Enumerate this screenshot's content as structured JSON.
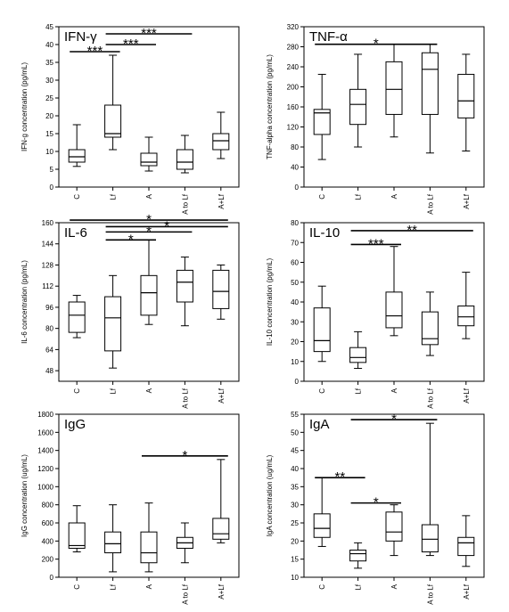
{
  "chart_data": [
    {
      "type": "box",
      "title": "IFN-γ",
      "ylabel": "IFN-g concentration (pg/mL)",
      "ylim": [
        0,
        45
      ],
      "yticks": [
        0,
        5,
        10,
        15,
        20,
        25,
        30,
        35,
        40,
        45
      ],
      "categories": [
        "C",
        "Lf",
        "A",
        "A to Lf",
        "A+Lf"
      ],
      "boxes": [
        {
          "min": 5.8,
          "q1": 7.0,
          "median": 8.5,
          "q3": 10.5,
          "max": 17.5
        },
        {
          "min": 10.5,
          "q1": 14.0,
          "median": 15.0,
          "q3": 23.0,
          "max": 37.0
        },
        {
          "min": 4.5,
          "q1": 6.0,
          "median": 7.0,
          "q3": 9.5,
          "max": 14.0
        },
        {
          "min": 4.0,
          "q1": 5.0,
          "median": 7.0,
          "q3": 10.5,
          "max": 14.5
        },
        {
          "min": 8.0,
          "q1": 10.5,
          "median": 13.0,
          "q3": 15.0,
          "max": 21.0
        }
      ],
      "significance": [
        {
          "from": 0,
          "to": 1,
          "y": 38.0,
          "label": "***"
        },
        {
          "from": 1,
          "to": 2,
          "y": 40.0,
          "label": "***"
        },
        {
          "from": 1,
          "to": 3,
          "y": 43.0,
          "label": "***"
        }
      ]
    },
    {
      "type": "box",
      "title": "TNF-α",
      "ylabel": "TNF-alpha concentration (pg/mL)",
      "ylim": [
        0,
        320
      ],
      "yticks": [
        0,
        40,
        80,
        120,
        160,
        200,
        240,
        280,
        320
      ],
      "categories": [
        "C",
        "Lf",
        "A",
        "A to Lf",
        "A+Lf"
      ],
      "boxes": [
        {
          "min": 55,
          "q1": 105,
          "median": 148,
          "q3": 155,
          "max": 225
        },
        {
          "min": 80,
          "q1": 125,
          "median": 165,
          "q3": 195,
          "max": 265
        },
        {
          "min": 100,
          "q1": 145,
          "median": 195,
          "q3": 250,
          "max": 285
        },
        {
          "min": 68,
          "q1": 145,
          "median": 235,
          "q3": 268,
          "max": 285
        },
        {
          "min": 72,
          "q1": 138,
          "median": 172,
          "q3": 225,
          "max": 265
        }
      ],
      "significance": [
        {
          "from": 0,
          "to": 3,
          "y": 285,
          "label": "*"
        }
      ]
    },
    {
      "type": "box",
      "title": "IL-6",
      "ylabel": "IL-6 concentration (pg/mL)",
      "ylim": [
        40,
        160
      ],
      "yticks": [
        48,
        64,
        80,
        96,
        112,
        128,
        144,
        160
      ],
      "categories": [
        "C",
        "Lf",
        "A",
        "A to Lf",
        "A+Lf"
      ],
      "boxes": [
        {
          "min": 73,
          "q1": 77,
          "median": 90,
          "q3": 100,
          "max": 105
        },
        {
          "min": 50,
          "q1": 63,
          "median": 88,
          "q3": 104,
          "max": 120
        },
        {
          "min": 83,
          "q1": 90,
          "median": 107,
          "q3": 120,
          "max": 147
        },
        {
          "min": 82,
          "q1": 100,
          "median": 115,
          "q3": 124,
          "max": 134
        },
        {
          "min": 87,
          "q1": 95,
          "median": 108,
          "q3": 124,
          "max": 128
        }
      ],
      "significance": [
        {
          "from": 0,
          "to": 4,
          "y": 162,
          "label": "*"
        },
        {
          "from": 1,
          "to": 4,
          "y": 157,
          "label": "*"
        },
        {
          "from": 1,
          "to": 3,
          "y": 153,
          "label": "*"
        },
        {
          "from": 1,
          "to": 2,
          "y": 147,
          "label": "*"
        }
      ]
    },
    {
      "type": "box",
      "title": "IL-10",
      "ylabel": "IL-10 concentration (pg/mL)",
      "ylim": [
        0,
        80
      ],
      "yticks": [
        0,
        10,
        20,
        30,
        40,
        50,
        60,
        70,
        80
      ],
      "categories": [
        "C",
        "Lf",
        "A",
        "A to Lf",
        "A+Lf"
      ],
      "boxes": [
        {
          "min": 10,
          "q1": 15,
          "median": 20.5,
          "q3": 37,
          "max": 48
        },
        {
          "min": 6.5,
          "q1": 9.5,
          "median": 12,
          "q3": 17,
          "max": 25
        },
        {
          "min": 23,
          "q1": 27,
          "median": 33,
          "q3": 45,
          "max": 68
        },
        {
          "min": 13,
          "q1": 18.5,
          "median": 21.5,
          "q3": 35,
          "max": 45
        },
        {
          "min": 21.5,
          "q1": 28,
          "median": 32.5,
          "q3": 38,
          "max": 55
        }
      ],
      "significance": [
        {
          "from": 1,
          "to": 2,
          "y": 69,
          "label": "***"
        },
        {
          "from": 1,
          "to": 4,
          "y": 76,
          "label": "**"
        }
      ]
    },
    {
      "type": "box",
      "title": "IgG",
      "ylabel": "IgG concentration (ug/mL)",
      "ylim": [
        0,
        1800
      ],
      "yticks": [
        0,
        200,
        400,
        600,
        800,
        1000,
        1200,
        1400,
        1600,
        1800
      ],
      "categories": [
        "C",
        "Lf",
        "A",
        "A to Lf",
        "A+Lf"
      ],
      "boxes": [
        {
          "min": 280,
          "q1": 320,
          "median": 350,
          "q3": 600,
          "max": 790
        },
        {
          "min": 60,
          "q1": 270,
          "median": 370,
          "q3": 500,
          "max": 800
        },
        {
          "min": 60,
          "q1": 160,
          "median": 270,
          "q3": 500,
          "max": 820
        },
        {
          "min": 160,
          "q1": 320,
          "median": 380,
          "q3": 440,
          "max": 600
        },
        {
          "min": 380,
          "q1": 420,
          "median": 480,
          "q3": 650,
          "max": 1300
        }
      ],
      "significance": [
        {
          "from": 2,
          "to": 4,
          "y": 1340,
          "label": "*"
        }
      ]
    },
    {
      "type": "box",
      "title": "IgA",
      "ylabel": "IgA concentration (ug/mL)",
      "ylim": [
        10,
        55
      ],
      "yticks": [
        10,
        15,
        20,
        25,
        30,
        35,
        40,
        45,
        50,
        55
      ],
      "categories": [
        "C",
        "Lf",
        "A",
        "A to Lf",
        "A+Lf"
      ],
      "boxes": [
        {
          "min": 18.5,
          "q1": 21,
          "median": 23.5,
          "q3": 27.5,
          "max": 37.5
        },
        {
          "min": 12.5,
          "q1": 14.5,
          "median": 16.5,
          "q3": 17.5,
          "max": 19.5
        },
        {
          "min": 16,
          "q1": 20,
          "median": 22.5,
          "q3": 28,
          "max": 30
        },
        {
          "min": 16,
          "q1": 17,
          "median": 20.5,
          "q3": 24.5,
          "max": 52.5
        },
        {
          "min": 13,
          "q1": 16,
          "median": 19.5,
          "q3": 21,
          "max": 27
        }
      ],
      "significance": [
        {
          "from": 0,
          "to": 1,
          "y": 37.5,
          "label": "**"
        },
        {
          "from": 1,
          "to": 2,
          "y": 30.5,
          "label": "*"
        },
        {
          "from": 1,
          "to": 3,
          "y": 53.5,
          "label": "*"
        }
      ]
    }
  ]
}
